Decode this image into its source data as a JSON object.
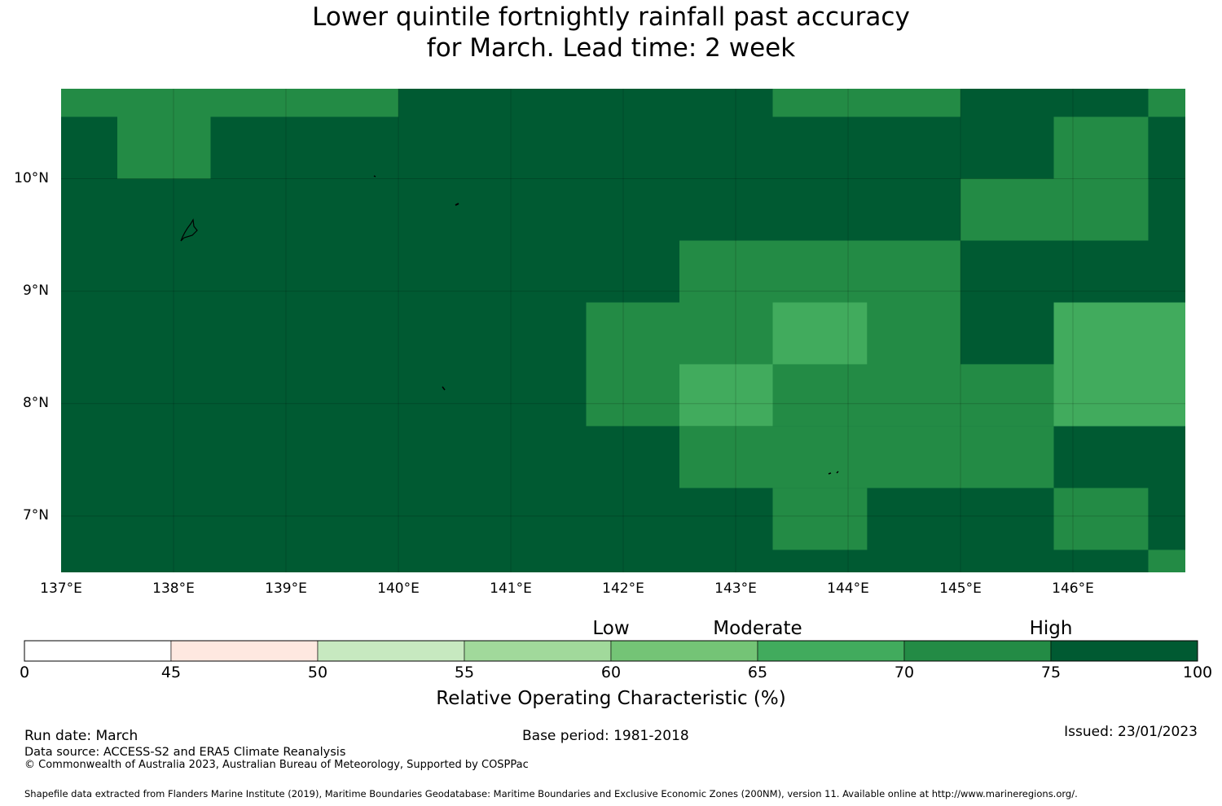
{
  "title": {
    "line1": "Lower quintile fortnightly rainfall past accuracy",
    "line2": "for March. Lead time: 2 week"
  },
  "map": {
    "lon_range": [
      137,
      147
    ],
    "lat_range": [
      6.5,
      10.8
    ],
    "lon_labels": [
      "137°E",
      "138°E",
      "139°E",
      "140°E",
      "141°E",
      "142°E",
      "143°E",
      "144°E",
      "145°E",
      "146°E"
    ],
    "lat_labels": [
      "10°N",
      "9°N",
      "8°N",
      "7°N"
    ],
    "colors": [
      "#ffffff",
      "#fee8e0",
      "#c7e9c0",
      "#a1d99b",
      "#74c476",
      "#41ab5d",
      "#238b45",
      "#005a32"
    ],
    "cells": [
      {
        "lon": [
          137.0,
          140.0
        ],
        "lat": [
          10.55,
          10.8
        ],
        "class": 6
      },
      {
        "lon": [
          137.5,
          138.33
        ],
        "lat": [
          10.0,
          10.55
        ],
        "class": 6
      },
      {
        "lon": [
          143.33,
          145.0
        ],
        "lat": [
          10.55,
          10.8
        ],
        "class": 6
      },
      {
        "lon": [
          146.67,
          147.0
        ],
        "lat": [
          10.55,
          10.8
        ],
        "class": 6
      },
      {
        "lon": [
          145.83,
          146.67
        ],
        "lat": [
          10.0,
          10.55
        ],
        "class": 6
      },
      {
        "lon": [
          145.0,
          146.67
        ],
        "lat": [
          9.45,
          10.0
        ],
        "class": 6
      },
      {
        "lon": [
          142.5,
          145.0
        ],
        "lat": [
          8.9,
          9.45
        ],
        "class": 6
      },
      {
        "lon": [
          141.67,
          143.33
        ],
        "lat": [
          8.35,
          8.9
        ],
        "class": 6
      },
      {
        "lon": [
          143.33,
          144.17
        ],
        "lat": [
          8.35,
          8.9
        ],
        "class": 5
      },
      {
        "lon": [
          144.17,
          145.0
        ],
        "lat": [
          8.35,
          8.9
        ],
        "class": 6
      },
      {
        "lon": [
          145.83,
          147.0
        ],
        "lat": [
          7.8,
          8.9
        ],
        "class": 5
      },
      {
        "lon": [
          141.67,
          142.5
        ],
        "lat": [
          7.8,
          8.35
        ],
        "class": 6
      },
      {
        "lon": [
          142.5,
          143.33
        ],
        "lat": [
          7.8,
          8.35
        ],
        "class": 5
      },
      {
        "lon": [
          143.33,
          145.83
        ],
        "lat": [
          7.8,
          8.35
        ],
        "class": 6
      },
      {
        "lon": [
          142.5,
          145.83
        ],
        "lat": [
          7.25,
          7.8
        ],
        "class": 6
      },
      {
        "lon": [
          143.33,
          144.17
        ],
        "lat": [
          6.7,
          7.25
        ],
        "class": 6
      },
      {
        "lon": [
          145.83,
          146.67
        ],
        "lat": [
          6.7,
          7.25
        ],
        "class": 6
      },
      {
        "lon": [
          146.67,
          147.0
        ],
        "lat": [
          6.5,
          6.7
        ],
        "class": 6
      }
    ]
  },
  "colorbar": {
    "boundaries": [
      0,
      45,
      50,
      55,
      60,
      65,
      70,
      75,
      100
    ],
    "tick_labels": [
      "0",
      "45",
      "50",
      "55",
      "60",
      "65",
      "70",
      "75",
      "100"
    ],
    "categories": [
      {
        "label": "Low",
        "at": 4
      },
      {
        "label": "Moderate",
        "at": 5
      },
      {
        "label": "High",
        "at": 7
      }
    ],
    "label": "Relative Operating Characteristic (%)"
  },
  "footer": {
    "run_date": "Run date: March",
    "base_period": "Base period: 1981-2018",
    "issued": "Issued: 23/01/2023",
    "data_source": "Data source: ACCESS-S2 and ERA5 Climate Reanalysis",
    "copyright": "© Commonwealth of Australia 2023, Australian Bureau of Meteorology, Supported by COSPPac",
    "shapefile": "Shapefile data extracted from Flanders Marine Institute (2019), Maritime Boundaries Geodatabase: Maritime Boundaries and Exclusive Economic Zones (200NM), version 11. Available online at http://www.marineregions.org/."
  }
}
